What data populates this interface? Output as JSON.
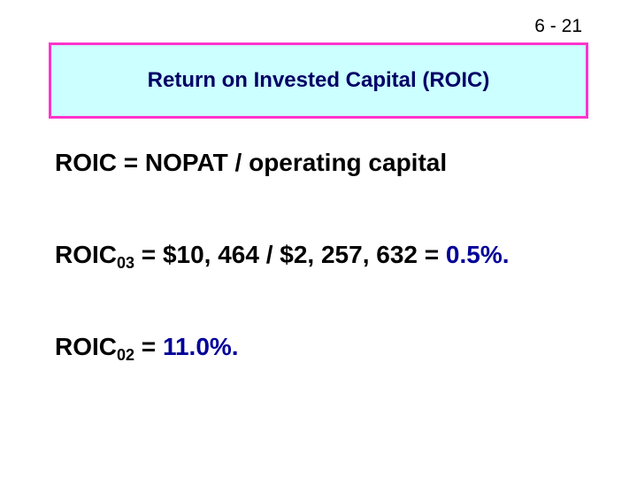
{
  "slide_number": "6 - 21",
  "title": "Return on Invested Capital (ROIC)",
  "lines": [
    {
      "text": "ROIC = NOPAT / operating capital"
    },
    {
      "base": "ROIC",
      "subscript": "03",
      "text": " = $10, 464 / $2, 257, 632 = ",
      "highlight": "0.5%."
    },
    {
      "base": "ROIC",
      "subscript": "02",
      "text": " = ",
      "highlight": "11.0%."
    }
  ]
}
